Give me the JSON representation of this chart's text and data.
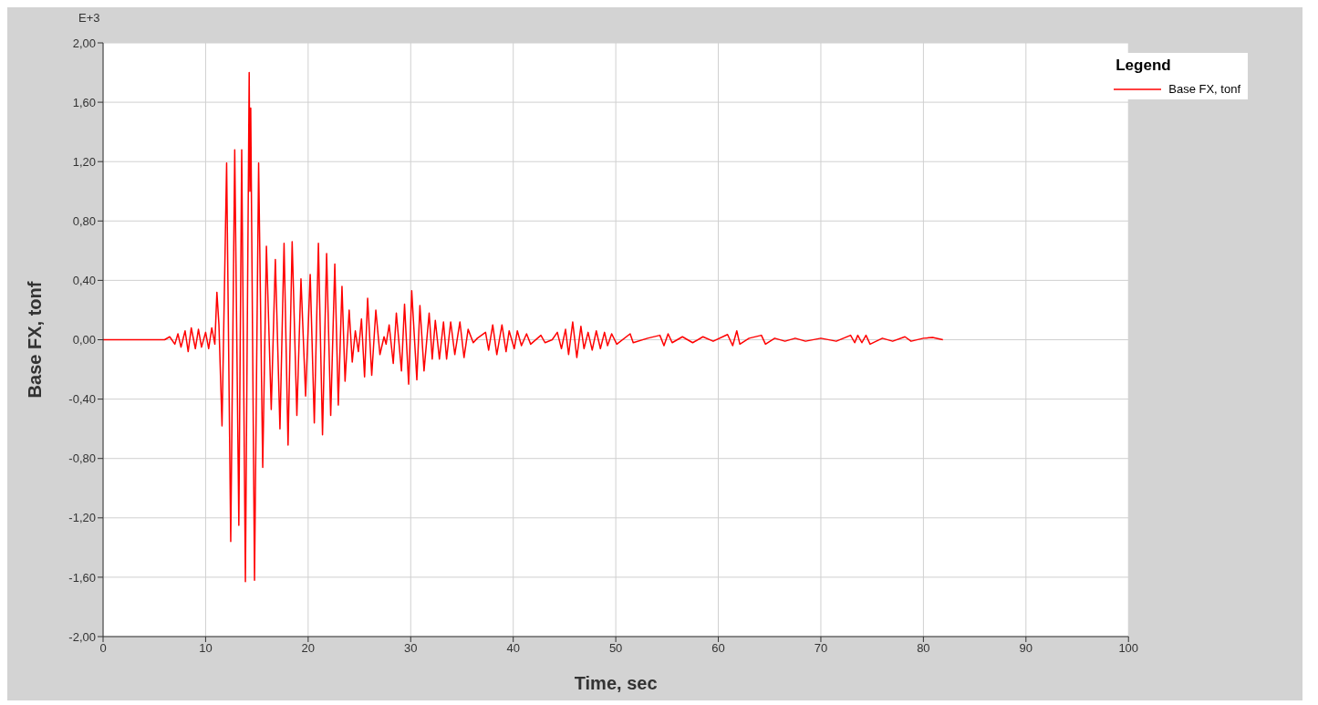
{
  "chart_data": {
    "type": "line",
    "xlabel": "Time,  sec",
    "ylabel": "Base FX, tonf",
    "legend_title": "Legend",
    "annotations": [
      "E+3"
    ],
    "x": [
      0,
      6,
      6.5,
      7,
      7.3,
      7.6,
      8,
      8.3,
      8.6,
      9,
      9.3,
      9.6,
      10,
      10.3,
      10.6,
      10.9,
      11.1,
      11.3,
      11.6,
      12.05,
      12.45,
      12.84,
      13.24,
      13.52,
      13.88,
      14.25,
      14.32,
      14.4,
      14.77,
      15.17,
      15.57,
      15.93,
      16.4,
      16.8,
      17.25,
      17.65,
      18.04,
      18.44,
      18.9,
      19.3,
      19.75,
      20.2,
      20.6,
      21.0,
      21.4,
      21.8,
      22.2,
      22.6,
      22.94,
      23.3,
      23.6,
      24.0,
      24.3,
      24.6,
      24.9,
      25.2,
      25.5,
      25.8,
      26.2,
      26.6,
      27.0,
      27.4,
      27.6,
      27.9,
      28.3,
      28.6,
      29.1,
      29.4,
      29.8,
      30.1,
      30.6,
      30.9,
      31.3,
      31.8,
      32.1,
      32.4,
      32.8,
      33.2,
      33.5,
      33.9,
      34.3,
      34.8,
      35.2,
      35.6,
      36.1,
      36.5,
      37.3,
      37.6,
      38.0,
      38.4,
      38.9,
      39.3,
      39.6,
      40.1,
      40.4,
      40.8,
      41.3,
      41.7,
      42.7,
      43.1,
      43.8,
      44.3,
      44.7,
      45.1,
      45.4,
      45.8,
      46.2,
      46.6,
      46.9,
      47.3,
      47.7,
      48.1,
      48.5,
      48.9,
      49.2,
      49.6,
      50.1,
      51.4,
      51.7,
      53.1,
      54.3,
      54.7,
      55.1,
      55.5,
      56.5,
      57.5,
      58.5,
      59.5,
      60.9,
      61.4,
      61.8,
      62.1,
      63.0,
      64.2,
      64.6,
      65.5,
      66.5,
      67.5,
      68.5,
      70.0,
      71.5,
      72.9,
      73.3,
      73.6,
      74.0,
      74.4,
      74.8,
      76.0,
      77.0,
      78.2,
      78.8,
      80.0,
      80.9,
      81.9
    ],
    "series": [
      {
        "name": "Base FX, tonf",
        "color": "#ff0000",
        "values": [
          0,
          0,
          0.02,
          -0.03,
          0.04,
          -0.05,
          0.06,
          -0.08,
          0.08,
          -0.06,
          0.07,
          -0.05,
          0.05,
          -0.06,
          0.08,
          -0.03,
          0.32,
          0.1,
          -0.58,
          1.19,
          -1.36,
          1.28,
          -1.25,
          1.28,
          -1.63,
          1.8,
          1.0,
          1.56,
          -1.62,
          1.19,
          -0.86,
          0.63,
          -0.47,
          0.54,
          -0.6,
          0.65,
          -0.71,
          0.66,
          -0.51,
          0.41,
          -0.38,
          0.44,
          -0.56,
          0.65,
          -0.64,
          0.58,
          -0.51,
          0.51,
          -0.44,
          0.36,
          -0.28,
          0.2,
          -0.15,
          0.06,
          -0.08,
          0.14,
          -0.25,
          0.28,
          -0.24,
          0.2,
          -0.1,
          0.02,
          -0.03,
          0.1,
          -0.16,
          0.18,
          -0.21,
          0.24,
          -0.3,
          0.33,
          -0.27,
          0.23,
          -0.21,
          0.18,
          -0.13,
          0.13,
          -0.13,
          0.12,
          -0.13,
          0.12,
          -0.1,
          0.12,
          -0.12,
          0.07,
          -0.02,
          0.01,
          0.05,
          -0.07,
          0.1,
          -0.1,
          0.1,
          -0.08,
          0.06,
          -0.06,
          0.06,
          -0.04,
          0.04,
          -0.03,
          0.03,
          -0.02,
          0,
          0.05,
          -0.06,
          0.07,
          -0.1,
          0.12,
          -0.12,
          0.09,
          -0.06,
          0.05,
          -0.07,
          0.06,
          -0.06,
          0.05,
          -0.04,
          0.04,
          -0.03,
          0.04,
          -0.02,
          0.01,
          0.03,
          -0.04,
          0.04,
          -0.02,
          0.02,
          -0.02,
          0.02,
          -0.01,
          0.035,
          -0.04,
          0.06,
          -0.03,
          0.01,
          0.03,
          -0.03,
          0.01,
          -0.01,
          0.01,
          -0.01,
          0.01,
          -0.01,
          0.03,
          -0.02,
          0.03,
          -0.02,
          0.03,
          -0.03,
          0.01,
          -0.01,
          0.02,
          -0.01,
          0.01,
          0.015,
          0
        ]
      }
    ],
    "xlim": [
      0,
      100
    ],
    "xticks": [
      0,
      10,
      20,
      30,
      40,
      50,
      60,
      70,
      80,
      90,
      100
    ],
    "ylim": [
      -2,
      2
    ],
    "yticks": [
      {
        "value": -2,
        "label": "-2,00"
      },
      {
        "value": -1.6,
        "label": "-1,60"
      },
      {
        "value": -1.2,
        "label": "-1,20"
      },
      {
        "value": -0.8,
        "label": "-0,80"
      },
      {
        "value": -0.4,
        "label": "-0,40"
      },
      {
        "value": 0,
        "label": "0,00"
      },
      {
        "value": 0.4,
        "label": "0,40"
      },
      {
        "value": 0.8,
        "label": "0,80"
      },
      {
        "value": 1.2,
        "label": "1,20"
      },
      {
        "value": 1.6,
        "label": "1,60"
      },
      {
        "value": 2,
        "label": "2,00"
      }
    ],
    "grid": true,
    "legend": "top right",
    "marker": "none",
    "line_style": "solid"
  }
}
